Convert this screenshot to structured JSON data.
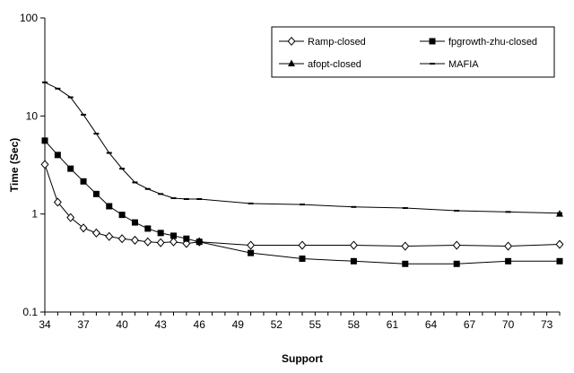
{
  "chart_data": {
    "type": "line",
    "title": "",
    "xlabel": "Support",
    "ylabel": "Time (Sec)",
    "y_scale": "log",
    "xlim": [
      34,
      74
    ],
    "ylim": [
      0.1,
      100
    ],
    "x_ticks": [
      "34",
      "37",
      "40",
      "43",
      "46",
      "49",
      "52",
      "55",
      "58",
      "61",
      "64",
      "67",
      "70",
      "73"
    ],
    "y_ticks": [
      "0.1",
      "1",
      "10",
      "100"
    ],
    "grid": false,
    "legend_placement": "top-right",
    "series": [
      {
        "name": "Ramp-closed",
        "marker": "open-diamond",
        "color": "#000000",
        "points": [
          [
            34,
            3.2
          ],
          [
            35,
            1.32
          ],
          [
            36,
            0.92
          ],
          [
            37,
            0.72
          ],
          [
            38,
            0.64
          ],
          [
            39,
            0.59
          ],
          [
            40,
            0.56
          ],
          [
            41,
            0.54
          ],
          [
            42,
            0.52
          ],
          [
            43,
            0.51
          ],
          [
            44,
            0.52
          ],
          [
            45,
            0.5
          ],
          [
            46,
            0.52
          ],
          [
            50,
            0.48
          ],
          [
            54,
            0.48
          ],
          [
            58,
            0.48
          ],
          [
            62,
            0.47
          ],
          [
            66,
            0.48
          ],
          [
            70,
            0.47
          ],
          [
            74,
            0.49
          ]
        ]
      },
      {
        "name": "fpgrowth-zhu-closed",
        "marker": "filled-square",
        "color": "#000000",
        "points": [
          [
            34,
            5.6
          ],
          [
            35,
            4.0
          ],
          [
            36,
            2.9
          ],
          [
            37,
            2.15
          ],
          [
            38,
            1.6
          ],
          [
            39,
            1.2
          ],
          [
            40,
            0.98
          ],
          [
            41,
            0.82
          ],
          [
            42,
            0.71
          ],
          [
            43,
            0.64
          ],
          [
            44,
            0.6
          ],
          [
            45,
            0.56
          ],
          [
            46,
            0.52
          ],
          [
            50,
            0.4
          ],
          [
            54,
            0.35
          ],
          [
            58,
            0.33
          ],
          [
            62,
            0.31
          ],
          [
            66,
            0.31
          ],
          [
            70,
            0.33
          ],
          [
            74,
            0.33
          ]
        ]
      },
      {
        "name": "afopt-closed",
        "marker": "filled-triangle",
        "color": "#000000",
        "points": [
          [
            74,
            1.0
          ]
        ]
      },
      {
        "name": "MAFIA",
        "marker": "dash",
        "color": "#000000",
        "points": [
          [
            34,
            22
          ],
          [
            35,
            19
          ],
          [
            36,
            15.5
          ],
          [
            37,
            10.3
          ],
          [
            38,
            6.6
          ],
          [
            39,
            4.2
          ],
          [
            40,
            2.9
          ],
          [
            41,
            2.1
          ],
          [
            42,
            1.8
          ],
          [
            43,
            1.6
          ],
          [
            44,
            1.45
          ],
          [
            45,
            1.42
          ],
          [
            46,
            1.42
          ],
          [
            50,
            1.28
          ],
          [
            54,
            1.25
          ],
          [
            58,
            1.18
          ],
          [
            62,
            1.15
          ],
          [
            66,
            1.08
          ],
          [
            70,
            1.05
          ],
          [
            74,
            1.02
          ]
        ]
      }
    ]
  }
}
